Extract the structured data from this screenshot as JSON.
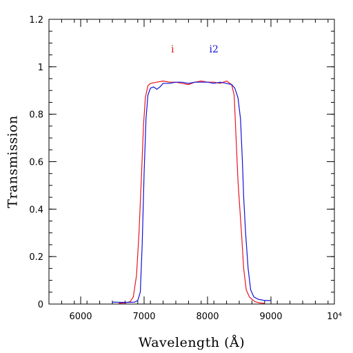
{
  "chart_data": {
    "type": "line",
    "title": "",
    "xlabel": "Wavelength (Å)",
    "ylabel": "Transmission",
    "xlim": [
      5500,
      10000
    ],
    "ylim": [
      0,
      1.2
    ],
    "x_ticks": [
      {
        "value": 6000,
        "label": "6000"
      },
      {
        "value": 7000,
        "label": "7000"
      },
      {
        "value": 8000,
        "label": "8000"
      },
      {
        "value": 9000,
        "label": "9000"
      },
      {
        "value": 10000,
        "label": "10⁴"
      }
    ],
    "y_ticks": [
      {
        "value": 0,
        "label": "0"
      },
      {
        "value": 0.2,
        "label": "0.2"
      },
      {
        "value": 0.4,
        "label": "0.4"
      },
      {
        "value": 0.6,
        "label": "0.6"
      },
      {
        "value": 0.8,
        "label": "0.8"
      },
      {
        "value": 1.0,
        "label": "1"
      },
      {
        "value": 1.2,
        "label": "1.2"
      }
    ],
    "x_minor_step": 200,
    "y_minor_step": 0.05,
    "series": [
      {
        "name": "i",
        "color": "#e8141e",
        "label_at": [
          7450,
          1.06
        ],
        "points": [
          [
            6600,
            0.003
          ],
          [
            6700,
            0.005
          ],
          [
            6780,
            0.01
          ],
          [
            6830,
            0.03
          ],
          [
            6880,
            0.12
          ],
          [
            6920,
            0.3
          ],
          [
            6960,
            0.55
          ],
          [
            6990,
            0.75
          ],
          [
            7020,
            0.87
          ],
          [
            7060,
            0.92
          ],
          [
            7100,
            0.93
          ],
          [
            7200,
            0.935
          ],
          [
            7300,
            0.94
          ],
          [
            7400,
            0.935
          ],
          [
            7500,
            0.935
          ],
          [
            7600,
            0.93
          ],
          [
            7700,
            0.925
          ],
          [
            7800,
            0.935
          ],
          [
            7900,
            0.94
          ],
          [
            8000,
            0.935
          ],
          [
            8100,
            0.935
          ],
          [
            8200,
            0.93
          ],
          [
            8300,
            0.94
          ],
          [
            8380,
            0.925
          ],
          [
            8420,
            0.88
          ],
          [
            8450,
            0.7
          ],
          [
            8480,
            0.52
          ],
          [
            8510,
            0.4
          ],
          [
            8540,
            0.28
          ],
          [
            8570,
            0.15
          ],
          [
            8610,
            0.06
          ],
          [
            8660,
            0.03
          ],
          [
            8700,
            0.02
          ],
          [
            8750,
            0.01
          ],
          [
            8820,
            0.005
          ],
          [
            8900,
            0.003
          ]
        ]
      },
      {
        "name": "i2",
        "color": "#1010d8",
        "label_at": [
          8100,
          1.06
        ],
        "points": [
          [
            6500,
            0.008
          ],
          [
            6700,
            0.007
          ],
          [
            6850,
            0.008
          ],
          [
            6900,
            0.015
          ],
          [
            6940,
            0.05
          ],
          [
            6970,
            0.25
          ],
          [
            7000,
            0.55
          ],
          [
            7030,
            0.78
          ],
          [
            7060,
            0.88
          ],
          [
            7100,
            0.91
          ],
          [
            7150,
            0.915
          ],
          [
            7200,
            0.905
          ],
          [
            7250,
            0.915
          ],
          [
            7300,
            0.93
          ],
          [
            7400,
            0.93
          ],
          [
            7500,
            0.935
          ],
          [
            7600,
            0.935
          ],
          [
            7700,
            0.93
          ],
          [
            7800,
            0.935
          ],
          [
            7900,
            0.935
          ],
          [
            8000,
            0.935
          ],
          [
            8100,
            0.93
          ],
          [
            8200,
            0.935
          ],
          [
            8300,
            0.93
          ],
          [
            8380,
            0.925
          ],
          [
            8430,
            0.91
          ],
          [
            8480,
            0.87
          ],
          [
            8520,
            0.78
          ],
          [
            8550,
            0.6
          ],
          [
            8570,
            0.45
          ],
          [
            8600,
            0.3
          ],
          [
            8640,
            0.15
          ],
          [
            8680,
            0.06
          ],
          [
            8730,
            0.03
          ],
          [
            8800,
            0.02
          ],
          [
            8900,
            0.015
          ],
          [
            9000,
            0.015
          ]
        ]
      }
    ]
  }
}
